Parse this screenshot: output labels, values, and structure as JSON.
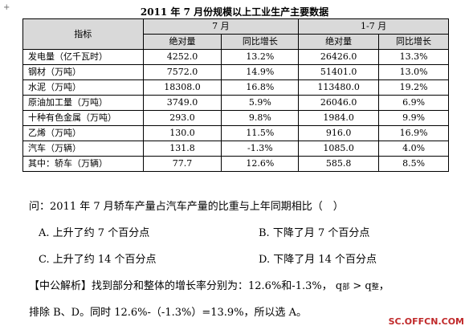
{
  "corner_mark": "+",
  "table": {
    "title": "2011 年 7 月份规模以上工业生产主要数据",
    "header": {
      "indicator": "指标",
      "group1": "7 月",
      "group2": "1-7 月",
      "abs": "绝对量",
      "yoy": "同比增长"
    },
    "rows": [
      {
        "name": "发电量（亿千瓦时）",
        "m_abs": "4252.0",
        "m_yoy": "13.2%",
        "c_abs": "26426.0",
        "c_yoy": "13.3%"
      },
      {
        "name": "钢材（万吨）",
        "m_abs": "7572.0",
        "m_yoy": "14.9%",
        "c_abs": "51401.0",
        "c_yoy": "13.0%"
      },
      {
        "name": "水泥（万吨）",
        "m_abs": "18308.0",
        "m_yoy": "16.8%",
        "c_abs": "113480.0",
        "c_yoy": "19.2%"
      },
      {
        "name": "原油加工量（万吨）",
        "m_abs": "3749.0",
        "m_yoy": "5.9%",
        "c_abs": "26046.0",
        "c_yoy": "6.9%"
      },
      {
        "name": "十种有色金属（万吨）",
        "m_abs": "293.0",
        "m_yoy": "9.8%",
        "c_abs": "1984.0",
        "c_yoy": "9.9%"
      },
      {
        "name": "乙烯（万吨）",
        "m_abs": "130.0",
        "m_yoy": "11.5%",
        "c_abs": "916.0",
        "c_yoy": "16.9%"
      },
      {
        "name": "汽车（万辆）",
        "m_abs": "131.8",
        "m_yoy": "-1.3%",
        "c_abs": "1085.0",
        "c_yoy": "4.0%"
      },
      {
        "name": "其中：轿车（万辆）",
        "m_abs": "77.7",
        "m_yoy": "12.6%",
        "c_abs": "585.8",
        "c_yoy": "8.5%"
      }
    ]
  },
  "question": "问：2011 年 7 月轿车产量占汽车产量的比重与上年同期相比（　）",
  "options": {
    "a": "A. 上升了约 7 个百分点",
    "b": "B. 下降了月 7 个百分点",
    "c": "C. 上升了约 14 个百分点",
    "d": "D. 下降了月 14 个百分点"
  },
  "analysis": {
    "line1_text": "【中公解析】找到部分和整体的增长率分别为：12.6%和-1.3%，",
    "q": "q",
    "sub_part": "部",
    "gt": " > ",
    "sub_whole": "整",
    "comma": "，",
    "line2": "排除 B、D。同时 12.6%-（-1.3%）=13.9%，所以选 A。"
  },
  "watermark": "SC.OFFCN.COM"
}
